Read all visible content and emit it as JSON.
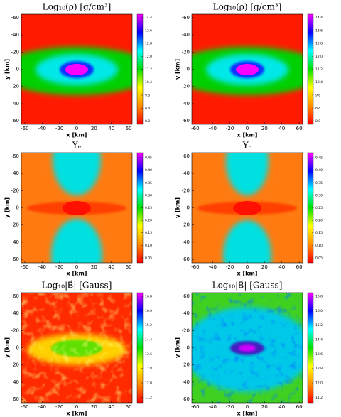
{
  "chart_data": [
    {
      "type": "heatmap",
      "title": "Log₁₀(ρ) [g/cm³]",
      "xlabel": "x [km]",
      "ylabel": "y [km]",
      "xlim": [
        -64,
        64
      ],
      "ylim": [
        -64,
        64
      ],
      "y_inverted": true,
      "xticks": [
        -60,
        -40,
        -20,
        0,
        20,
        40,
        60
      ],
      "yticks": [
        -60,
        -40,
        -20,
        0,
        20,
        40,
        60
      ],
      "colormap": [
        "#ff0000",
        "#ff8c00",
        "#ffff00",
        "#00e000",
        "#00ffff",
        "#0000ff",
        "#ff00ff"
      ],
      "clim": [
        7.8,
        14.6
      ],
      "cticks": [
        {
          "value": 8,
          "label": "8.0"
        },
        8.8,
        9.6,
        10.4,
        11.2,
        {
          "value": 12,
          "label": "12.0"
        },
        12.8,
        13.6,
        14.4
      ]
    },
    {
      "type": "heatmap",
      "title": "Log₁₀(ρ) [g/cm³]",
      "xlabel": "x [km]",
      "ylabel": "y [km]",
      "xlim": [
        -64,
        64
      ],
      "ylim": [
        -64,
        64
      ],
      "y_inverted": true,
      "xticks": [
        -60,
        -40,
        -20,
        0,
        20,
        40,
        60
      ],
      "yticks": [
        -60,
        -40,
        -20,
        0,
        20,
        40,
        60
      ],
      "colormap": [
        "#ff0000",
        "#ff8c00",
        "#ffff00",
        "#00e000",
        "#00ffff",
        "#0000ff",
        "#ff00ff"
      ],
      "clim": [
        7.8,
        14.6
      ],
      "cticks": [
        {
          "value": 8,
          "label": "8.0"
        },
        8.8,
        9.6,
        10.4,
        11.2,
        {
          "value": 12,
          "label": "12.0"
        },
        12.8,
        13.6,
        14.4
      ]
    },
    {
      "type": "heatmap",
      "title": "Yₑ",
      "xlabel": "x [km]",
      "ylabel": "y [km]",
      "xlim": [
        -64,
        64
      ],
      "ylim": [
        -64,
        64
      ],
      "y_inverted": true,
      "xticks": [
        -60,
        -40,
        -20,
        0,
        20,
        40,
        60
      ],
      "yticks": [
        -60,
        -40,
        -20,
        0,
        20,
        40,
        60
      ],
      "colormap": [
        "#ff0000",
        "#ff8c00",
        "#ffff00",
        "#00e000",
        "#00ffff",
        "#0000ff",
        "#ff00ff"
      ],
      "clim": [
        0.03,
        0.47
      ],
      "cticks": [
        0.05,
        {
          "value": 0.1,
          "label": "0.10"
        },
        0.15,
        {
          "value": 0.2,
          "label": "0.20"
        },
        0.25,
        {
          "value": 0.3,
          "label": "0.30"
        },
        0.35,
        {
          "value": 0.4,
          "label": "0.40"
        },
        0.45
      ]
    },
    {
      "type": "heatmap",
      "title": "Yₑ",
      "xlabel": "x [km]",
      "ylabel": "y [km]",
      "xlim": [
        -64,
        64
      ],
      "ylim": [
        -64,
        64
      ],
      "y_inverted": true,
      "xticks": [
        -60,
        -40,
        -20,
        0,
        20,
        40,
        60
      ],
      "yticks": [
        -60,
        -40,
        -20,
        0,
        20,
        40,
        60
      ],
      "colormap": [
        "#ff0000",
        "#ff8c00",
        "#ffff00",
        "#00e000",
        "#00ffff",
        "#0000ff",
        "#ff00ff"
      ],
      "clim": [
        0.03,
        0.47
      ],
      "cticks": [
        0.05,
        {
          "value": 0.1,
          "label": "0.10"
        },
        0.15,
        {
          "value": 0.2,
          "label": "0.20"
        },
        0.25,
        {
          "value": 0.3,
          "label": "0.30"
        },
        0.35,
        {
          "value": 0.4,
          "label": "0.40"
        },
        0.45
      ]
    },
    {
      "type": "heatmap",
      "title": "Log₁₀|B⃗| [Gauss]",
      "xlabel": "x [km]",
      "ylabel": "y [km]",
      "xlim": [
        -64,
        64
      ],
      "ylim": [
        -64,
        64
      ],
      "y_inverted": true,
      "xticks": [
        -60,
        -40,
        -20,
        0,
        20,
        40,
        60
      ],
      "yticks": [
        -60,
        -40,
        -20,
        0,
        20,
        40,
        60
      ],
      "colormap": [
        "#ff0000",
        "#ff8c00",
        "#ffff00",
        "#00e000",
        "#00ffff",
        "#0000ff",
        "#ff00ff"
      ],
      "clim": [
        10.9,
        17.0
      ],
      "cticks": [
        11.2,
        {
          "value": 12,
          "label": "12.0"
        },
        12.8,
        13.6,
        14.4,
        15.2,
        {
          "value": 16,
          "label": "16.0"
        },
        16.8
      ]
    },
    {
      "type": "heatmap",
      "title": "Log₁₀|B⃗| [Gauss]",
      "xlabel": "x [km]",
      "ylabel": "y [km]",
      "xlim": [
        -64,
        64
      ],
      "ylim": [
        -64,
        64
      ],
      "y_inverted": true,
      "xticks": [
        -60,
        -40,
        -20,
        0,
        20,
        40,
        60
      ],
      "yticks": [
        -60,
        -40,
        -20,
        0,
        20,
        40,
        60
      ],
      "colormap": [
        "#ff0000",
        "#ff8c00",
        "#ffff00",
        "#00e000",
        "#00ffff",
        "#0000ff",
        "#ff00ff"
      ],
      "clim": [
        10.9,
        17.0
      ],
      "cticks": [
        11.2,
        {
          "value": 12,
          "label": "12.0"
        },
        12.8,
        13.6,
        14.4,
        15.2,
        {
          "value": 16,
          "label": "16.0"
        },
        16.8
      ]
    }
  ]
}
